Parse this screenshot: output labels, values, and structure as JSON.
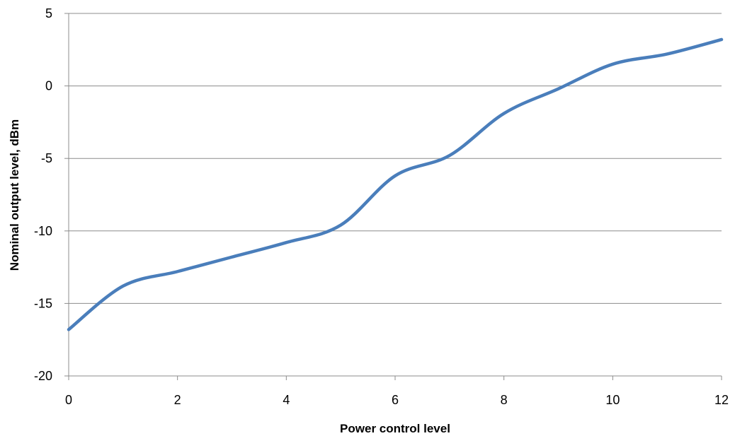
{
  "chart_data": {
    "type": "line",
    "title": "",
    "xlabel": "Power control level",
    "ylabel": "Nominal output level, dBm",
    "xlim": [
      0,
      12
    ],
    "ylim": [
      -20,
      5
    ],
    "x_ticks": [
      0,
      2,
      4,
      6,
      8,
      10,
      12
    ],
    "y_ticks": [
      5,
      0,
      -5,
      -10,
      -15,
      -20
    ],
    "x_tick_labels": [
      "0",
      "2",
      "4",
      "6",
      "8",
      "10",
      "12"
    ],
    "y_tick_labels": [
      "5",
      "0",
      "-5",
      "-10",
      "-15",
      "-20"
    ],
    "grid": "horizontal",
    "legend": "none",
    "series": [
      {
        "color": "#4a7ebb",
        "x": [
          0,
          1,
          2,
          3,
          4,
          5,
          6,
          7,
          8,
          9,
          10,
          11,
          12
        ],
        "y": [
          -16.8,
          -13.8,
          -12.8,
          -11.8,
          -10.8,
          -9.6,
          -6.2,
          -4.8,
          -1.9,
          -0.2,
          1.5,
          2.2,
          3.2
        ]
      }
    ]
  }
}
